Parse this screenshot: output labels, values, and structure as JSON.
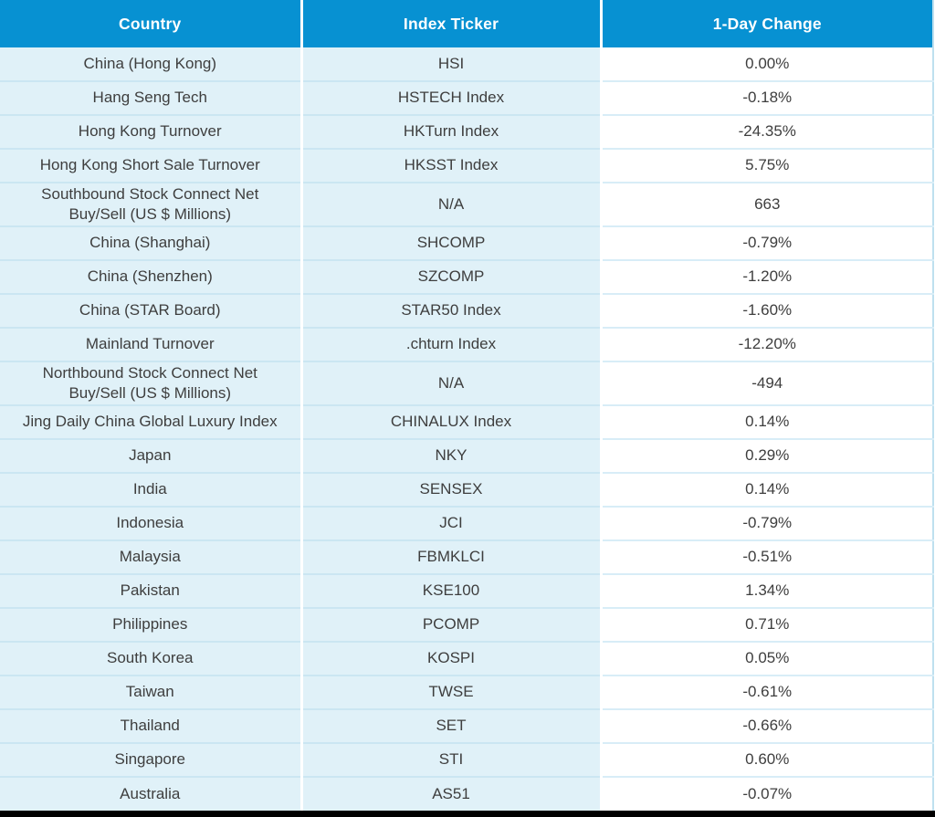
{
  "chart_data": {
    "type": "table",
    "columns": [
      "Country",
      "Index Ticker",
      "1-Day Change"
    ],
    "rows": [
      {
        "country": "China (Hong Kong)",
        "ticker": "HSI",
        "change": "0.00%"
      },
      {
        "country": "Hang Seng Tech",
        "ticker": "HSTECH Index",
        "change": "-0.18%"
      },
      {
        "country": "Hong Kong Turnover",
        "ticker": "HKTurn Index",
        "change": "-24.35%"
      },
      {
        "country": "Hong Kong Short Sale Turnover",
        "ticker": "HKSST Index",
        "change": "5.75%"
      },
      {
        "country": "Southbound Stock Connect Net Buy/Sell (US $ Millions)",
        "ticker": "N/A",
        "change": "663",
        "tall": true
      },
      {
        "country": "China (Shanghai)",
        "ticker": "SHCOMP",
        "change": "-0.79%"
      },
      {
        "country": "China (Shenzhen)",
        "ticker": "SZCOMP",
        "change": "-1.20%"
      },
      {
        "country": "China (STAR Board)",
        "ticker": "STAR50 Index",
        "change": "-1.60%"
      },
      {
        "country": "Mainland Turnover",
        "ticker": ".chturn Index",
        "change": "-12.20%"
      },
      {
        "country": "Northbound Stock Connect Net Buy/Sell (US $ Millions)",
        "ticker": "N/A",
        "change": "-494",
        "tall": true
      },
      {
        "country": "Jing Daily China Global Luxury Index",
        "ticker": "CHINALUX Index",
        "change": "0.14%"
      },
      {
        "country": "Japan",
        "ticker": "NKY",
        "change": "0.29%"
      },
      {
        "country": "India",
        "ticker": "SENSEX",
        "change": "0.14%"
      },
      {
        "country": "Indonesia",
        "ticker": "JCI",
        "change": "-0.79%"
      },
      {
        "country": "Malaysia",
        "ticker": "FBMKLCI",
        "change": "-0.51%"
      },
      {
        "country": "Pakistan",
        "ticker": "KSE100",
        "change": "1.34%"
      },
      {
        "country": "Philippines",
        "ticker": "PCOMP",
        "change": "0.71%"
      },
      {
        "country": "South Korea",
        "ticker": "KOSPI",
        "change": "0.05%"
      },
      {
        "country": "Taiwan",
        "ticker": "TWSE",
        "change": "-0.61%"
      },
      {
        "country": "Thailand",
        "ticker": "SET",
        "change": "-0.66%"
      },
      {
        "country": "Singapore",
        "ticker": "STI",
        "change": "0.60%"
      },
      {
        "country": "Australia",
        "ticker": "AS51",
        "change": "-0.07%"
      }
    ]
  },
  "colors": {
    "header_bg": "#0791D2",
    "header_text": "#FFFFFF",
    "row_blue": "#E0F1F8",
    "divider_blue": "#CBE6F2",
    "divider_light": "#D8EDF7",
    "text": "#3E3E3E",
    "edge": "#BEE0EF",
    "bottom_bar": "#000000"
  }
}
